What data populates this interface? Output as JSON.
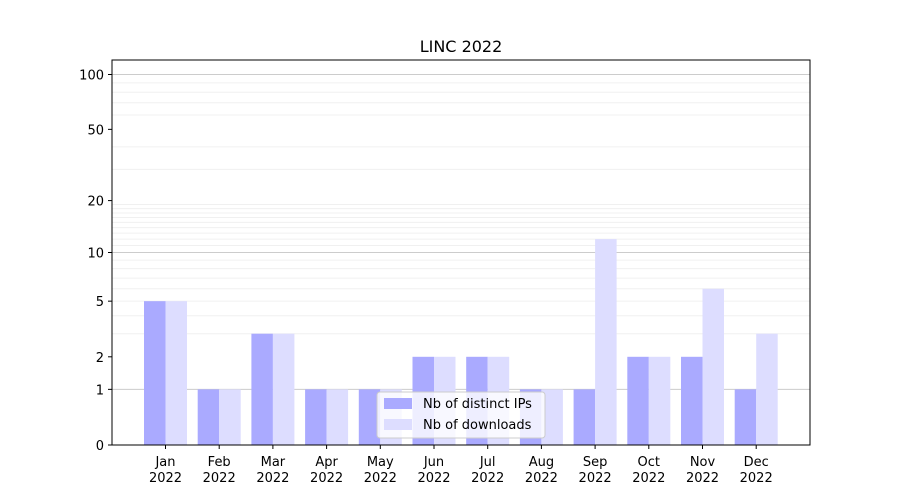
{
  "chart_data": {
    "type": "bar",
    "title": "LINC 2022",
    "xlabel": "",
    "ylabel": "",
    "yscale": "symlog",
    "ylim": [
      0,
      120
    ],
    "yticks": [
      {
        "value": 0,
        "label": "0"
      },
      {
        "value": 1,
        "label": "1"
      },
      {
        "value": 2,
        "label": "2"
      },
      {
        "value": 5,
        "label": "5"
      },
      {
        "value": 10,
        "label": "10"
      },
      {
        "value": 20,
        "label": "20"
      },
      {
        "value": 50,
        "label": "50"
      },
      {
        "value": 100,
        "label": "100"
      }
    ],
    "categories": [
      {
        "month": "Jan",
        "year": "2022"
      },
      {
        "month": "Feb",
        "year": "2022"
      },
      {
        "month": "Mar",
        "year": "2022"
      },
      {
        "month": "Apr",
        "year": "2022"
      },
      {
        "month": "May",
        "year": "2022"
      },
      {
        "month": "Jun",
        "year": "2022"
      },
      {
        "month": "Jul",
        "year": "2022"
      },
      {
        "month": "Aug",
        "year": "2022"
      },
      {
        "month": "Sep",
        "year": "2022"
      },
      {
        "month": "Oct",
        "year": "2022"
      },
      {
        "month": "Nov",
        "year": "2022"
      },
      {
        "month": "Dec",
        "year": "2022"
      }
    ],
    "series": [
      {
        "name": "Nb of distinct IPs",
        "color": "#aaaaff",
        "values": [
          5,
          1,
          3,
          1,
          1,
          2,
          2,
          1,
          1,
          2,
          2,
          1
        ]
      },
      {
        "name": "Nb of downloads",
        "color": "#ddddff",
        "values": [
          5,
          1,
          3,
          1,
          1,
          2,
          2,
          1,
          12,
          2,
          6,
          3
        ]
      }
    ],
    "grid": true,
    "legend": "bottom-center"
  }
}
